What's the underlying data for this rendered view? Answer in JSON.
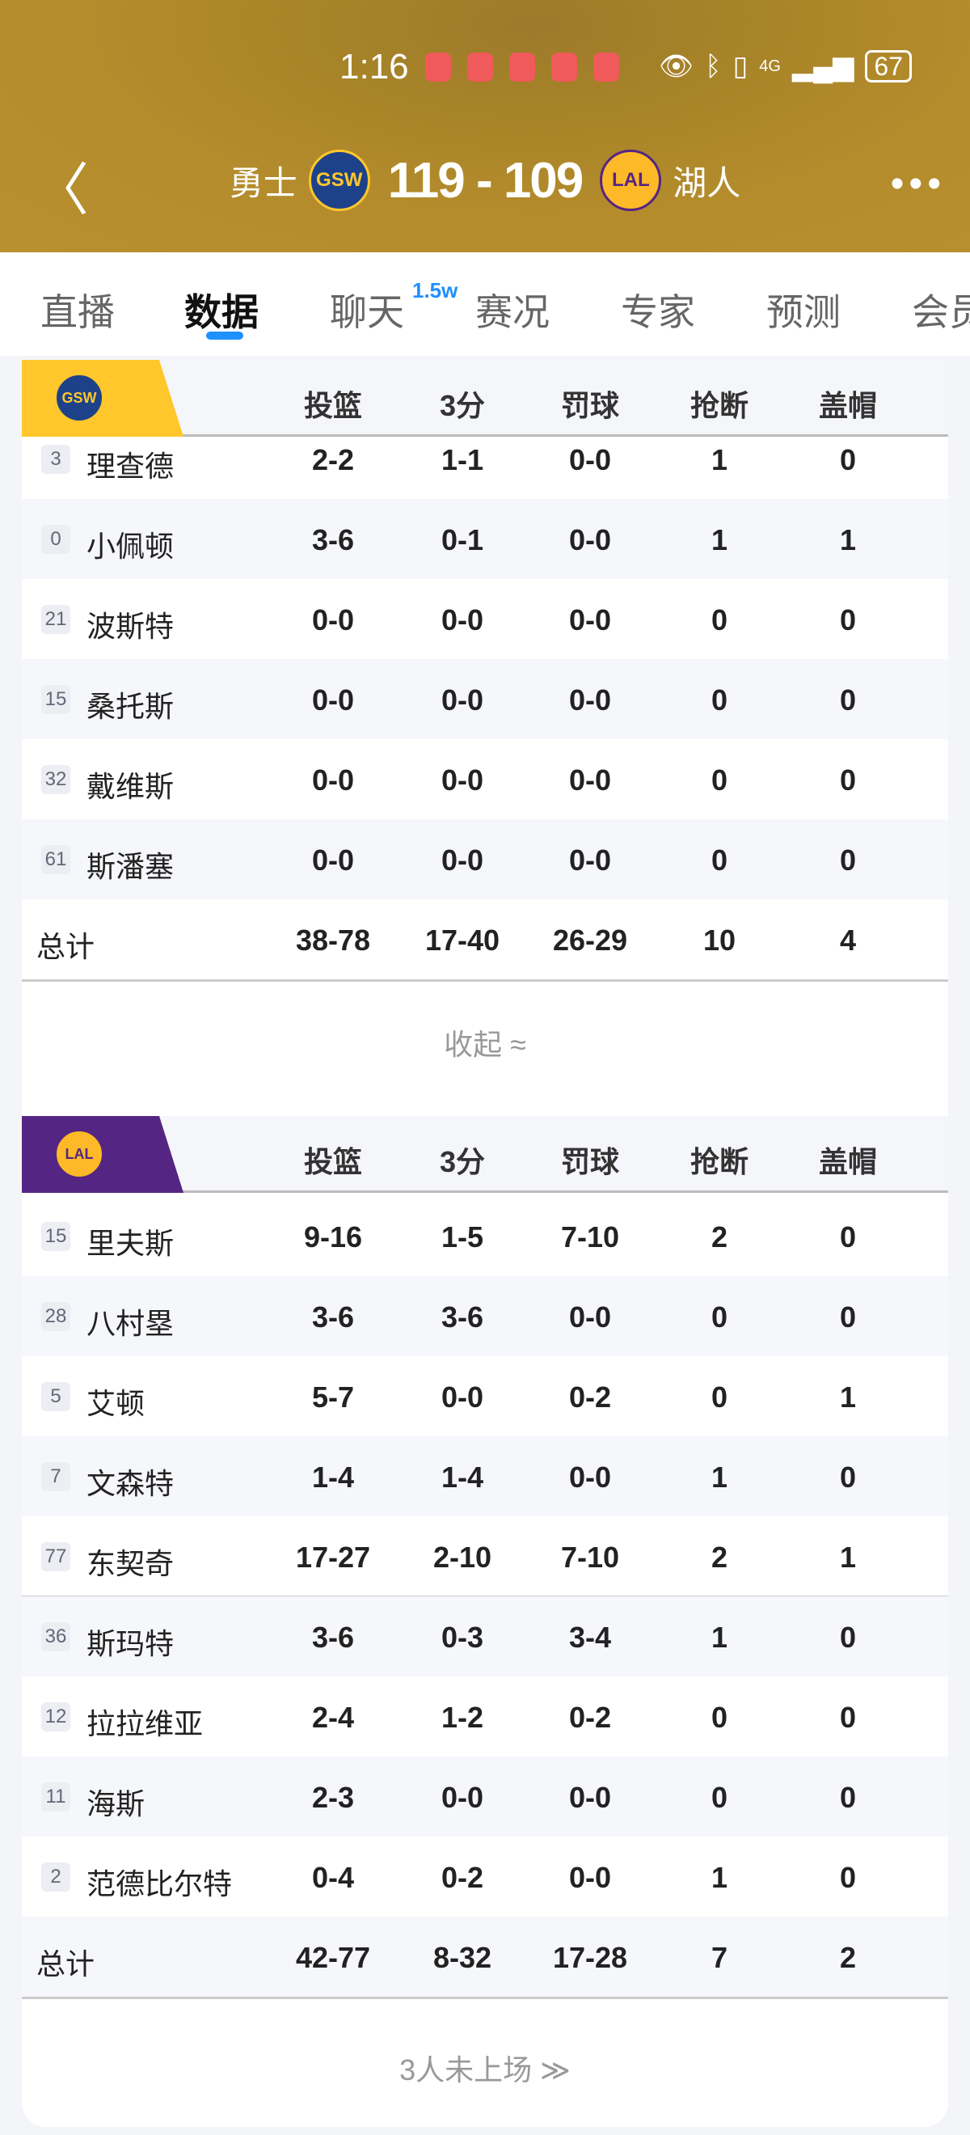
{
  "status_bar": {
    "time": "1:16",
    "network": "4G",
    "battery": "67"
  },
  "header": {
    "home_team": "勇士",
    "home_abbr": "GSW",
    "score": "119 - 109",
    "away_abbr": "LAL",
    "away_team": "湖人"
  },
  "tabs": [
    {
      "label": "直播"
    },
    {
      "label": "数据",
      "active": true
    },
    {
      "label": "聊天",
      "badge": "1.5w"
    },
    {
      "label": "赛况"
    },
    {
      "label": "专家"
    },
    {
      "label": "预测"
    },
    {
      "label": "会员"
    }
  ],
  "columns": [
    "投篮",
    "3分",
    "罚球",
    "抢断",
    "盖帽"
  ],
  "colors": {
    "gsw": "#ffc72c",
    "lal": "#552583",
    "accent": "#1e90ff"
  },
  "gsw": {
    "abbr": "GSW",
    "players": [
      {
        "num": "3",
        "name": "理查德",
        "stats": [
          "2-2",
          "1-1",
          "0-0",
          "1",
          "0"
        ]
      },
      {
        "num": "0",
        "name": "小佩顿",
        "stats": [
          "3-6",
          "0-1",
          "0-0",
          "1",
          "1"
        ]
      },
      {
        "num": "21",
        "name": "波斯特",
        "stats": [
          "0-0",
          "0-0",
          "0-0",
          "0",
          "0"
        ]
      },
      {
        "num": "15",
        "name": "桑托斯",
        "stats": [
          "0-0",
          "0-0",
          "0-0",
          "0",
          "0"
        ]
      },
      {
        "num": "32",
        "name": "戴维斯",
        "stats": [
          "0-0",
          "0-0",
          "0-0",
          "0",
          "0"
        ]
      },
      {
        "num": "61",
        "name": "斯潘塞",
        "stats": [
          "0-0",
          "0-0",
          "0-0",
          "0",
          "0"
        ]
      }
    ],
    "total": {
      "label": "总计",
      "stats": [
        "38-78",
        "17-40",
        "26-29",
        "10",
        "4"
      ]
    },
    "footer": "收起 ≈"
  },
  "lal": {
    "abbr": "LAL",
    "players": [
      {
        "num": "15",
        "name": "里夫斯",
        "stats": [
          "9-16",
          "1-5",
          "7-10",
          "2",
          "0"
        ]
      },
      {
        "num": "28",
        "name": "八村塁",
        "stats": [
          "3-6",
          "3-6",
          "0-0",
          "0",
          "0"
        ]
      },
      {
        "num": "5",
        "name": "艾顿",
        "stats": [
          "5-7",
          "0-0",
          "0-2",
          "0",
          "1"
        ]
      },
      {
        "num": "7",
        "name": "文森特",
        "stats": [
          "1-4",
          "1-4",
          "0-0",
          "1",
          "0"
        ]
      },
      {
        "num": "77",
        "name": "东契奇",
        "stats": [
          "17-27",
          "2-10",
          "7-10",
          "2",
          "1"
        ]
      },
      {
        "num": "36",
        "name": "斯玛特",
        "stats": [
          "3-6",
          "0-3",
          "3-4",
          "1",
          "0"
        ]
      },
      {
        "num": "12",
        "name": "拉拉维亚",
        "stats": [
          "2-4",
          "1-2",
          "0-2",
          "0",
          "0"
        ]
      },
      {
        "num": "11",
        "name": "海斯",
        "stats": [
          "2-3",
          "0-0",
          "0-0",
          "0",
          "0"
        ]
      },
      {
        "num": "2",
        "name": "范德比尔特",
        "stats": [
          "0-4",
          "0-2",
          "0-0",
          "1",
          "0"
        ]
      }
    ],
    "total": {
      "label": "总计",
      "stats": [
        "42-77",
        "8-32",
        "17-28",
        "7",
        "2"
      ]
    },
    "footer": "3人未上场 ≫"
  }
}
